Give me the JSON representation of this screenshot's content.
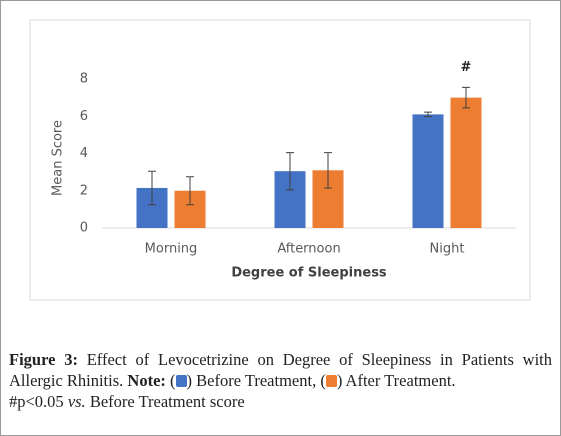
{
  "chart_data": {
    "type": "bar",
    "x_label": "Degree of Sleepiness",
    "y_label": "Mean Score",
    "categories": [
      "Morning",
      "Afternoon",
      "Night"
    ],
    "series": [
      {
        "name": "Before Treatment",
        "color": "#4472c4",
        "values": [
          2.15,
          3.05,
          6.1
        ],
        "errors": [
          0.9,
          1.0,
          0.12
        ]
      },
      {
        "name": "After Treatment",
        "color": "#ed7d31",
        "values": [
          2.0,
          3.1,
          7.0
        ],
        "errors": [
          0.75,
          0.95,
          0.55
        ]
      }
    ],
    "ylim": [
      0,
      8
    ],
    "yticks": [
      0,
      2,
      4,
      6,
      8
    ],
    "grid": false,
    "annotation": "#",
    "caption_label": "Figure 3:",
    "caption": "Effect of Levocetrizine on Degree of Sleepiness in Patients with Allergic Rhinitis.",
    "note_label": "Note:",
    "legend_wrap": [
      "(",
      ")"
    ],
    "legend_separators": [
      ",",
      "."
    ],
    "footnote_parts": [
      "#p<0.05",
      "vs.",
      "Before Treatment score"
    ]
  }
}
